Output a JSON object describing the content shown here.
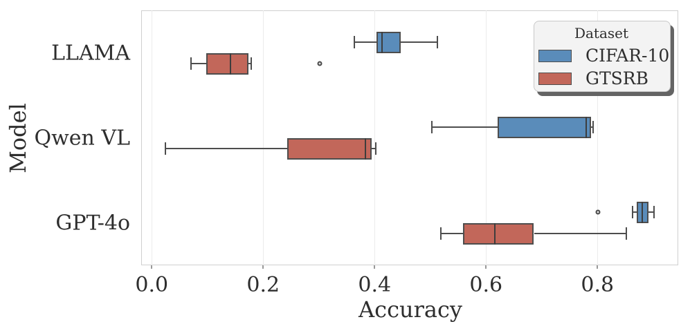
{
  "chart_data": {
    "type": "boxplot",
    "orientation": "horizontal",
    "title": "",
    "xlabel": "Accuracy",
    "ylabel": "Model",
    "categories": [
      "LLAMA",
      "Qwen VL",
      "GPT-4o"
    ],
    "x_ticks": [
      0.0,
      0.2,
      0.4,
      0.6,
      0.8
    ],
    "x_tick_labels": [
      "0.0",
      "0.2",
      "0.4",
      "0.6",
      "0.8"
    ],
    "xlim": [
      -0.019,
      0.945
    ],
    "grid": true,
    "legend": {
      "title": "Dataset",
      "position": "upper right",
      "entries": [
        {
          "label": "CIFAR-10",
          "color": "#5a8cba"
        },
        {
          "label": "GTSRB",
          "color": "#c2675a"
        }
      ]
    },
    "series": [
      {
        "name": "CIFAR-10",
        "color": "#5a8cba",
        "boxes": [
          {
            "category": "LLAMA",
            "whisker_low": 0.363,
            "q1": 0.403,
            "median": 0.413,
            "q3": 0.447,
            "whisker_high": 0.513,
            "outliers": []
          },
          {
            "category": "Qwen VL",
            "whisker_low": 0.503,
            "q1": 0.621,
            "median": 0.78,
            "q3": 0.789,
            "whisker_high": 0.792,
            "outliers": []
          },
          {
            "category": "GPT-4o",
            "whisker_low": 0.863,
            "q1": 0.87,
            "median": 0.88,
            "q3": 0.891,
            "whisker_high": 0.902,
            "outliers": [
              0.801
            ]
          }
        ]
      },
      {
        "name": "GTSRB",
        "color": "#c2675a",
        "boxes": [
          {
            "category": "LLAMA",
            "whisker_low": 0.071,
            "q1": 0.098,
            "median": 0.141,
            "q3": 0.173,
            "whisker_high": 0.178,
            "outliers": [
              0.302
            ]
          },
          {
            "category": "Qwen VL",
            "whisker_low": 0.024,
            "q1": 0.243,
            "median": 0.384,
            "q3": 0.395,
            "whisker_high": 0.402,
            "outliers": []
          },
          {
            "category": "GPT-4o",
            "whisker_low": 0.519,
            "q1": 0.559,
            "median": 0.616,
            "q3": 0.686,
            "whisker_high": 0.852,
            "outliers": []
          }
        ]
      }
    ],
    "style": {
      "box_edge_color": "#4d4d4d",
      "median_color": "#3d3d3d",
      "grid_color": "#ebebeb",
      "spine_color": "#cfcfcf",
      "text_color": "#2e2e2e",
      "background": "#ffffff"
    }
  }
}
